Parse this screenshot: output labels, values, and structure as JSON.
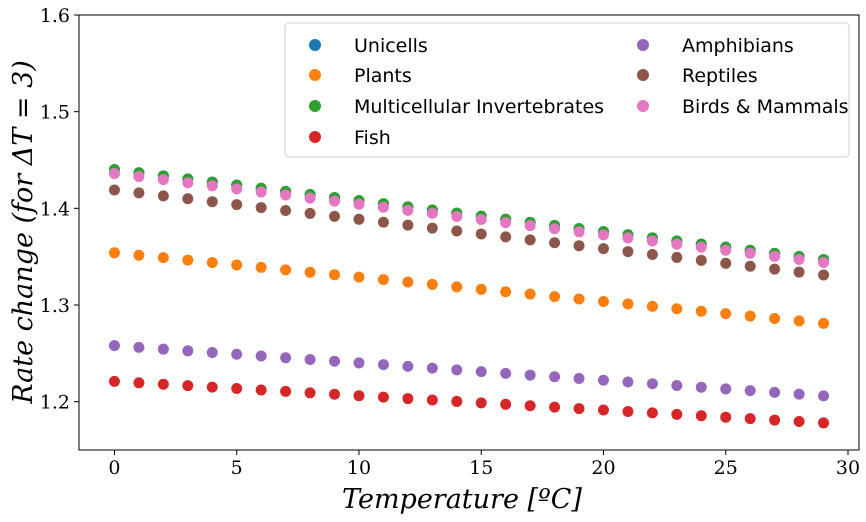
{
  "chart_data": {
    "type": "scatter",
    "xlabel": "Temperature [ºC]",
    "ylabel": "Rate   change (for ΔT = 3)",
    "xlim": [
      -1.45,
      30.45
    ],
    "ylim": [
      1.15,
      1.6
    ],
    "xticks": [
      "0",
      "5",
      "10",
      "15",
      "20",
      "25",
      "30"
    ],
    "yticks": [
      "1.2",
      "1.3",
      "1.4",
      "1.5",
      "1.6"
    ],
    "grid": false,
    "legend_position": "top-right",
    "legend_columns": 2,
    "x": [
      0,
      1,
      2,
      3,
      4,
      5,
      6,
      7,
      8,
      9,
      10,
      11,
      12,
      13,
      14,
      15,
      16,
      17,
      18,
      19,
      20,
      21,
      22,
      23,
      24,
      25,
      26,
      27,
      28,
      29
    ],
    "series": [
      {
        "name": "Unicells",
        "color": "#1f77b4",
        "start": 1.44,
        "end": 1.347
      },
      {
        "name": "Plants",
        "color": "#ff7f0e",
        "start": 1.354,
        "end": 1.281
      },
      {
        "name": "Multicellular Invertebrates",
        "color": "#2ca02c",
        "start": 1.44,
        "end": 1.347
      },
      {
        "name": "Fish",
        "color": "#d62728",
        "start": 1.221,
        "end": 1.178
      },
      {
        "name": "Amphibians",
        "color": "#9467bd",
        "start": 1.258,
        "end": 1.206
      },
      {
        "name": "Reptiles",
        "color": "#8c564b",
        "start": 1.419,
        "end": 1.331
      },
      {
        "name": "Birds & Mammals",
        "color": "#e377c2",
        "start": 1.436,
        "end": 1.344
      }
    ]
  }
}
